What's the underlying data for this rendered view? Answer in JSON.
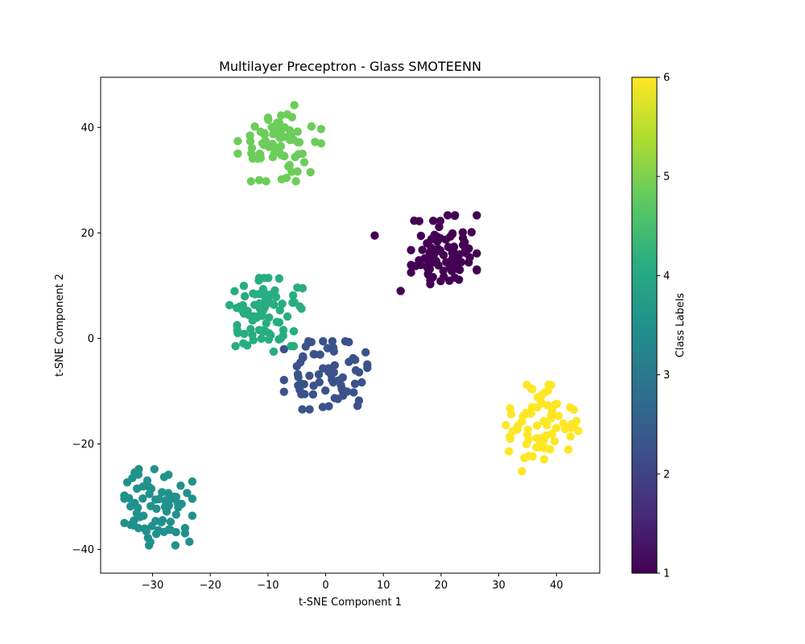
{
  "chart_data": {
    "type": "scatter",
    "title": "Multilayer Preceptron - Glass SMOTEENN",
    "xlabel": "t-SNE Component 1",
    "ylabel": "t-SNE Component 2",
    "xlim": [
      -39,
      47.5
    ],
    "ylim": [
      -44.5,
      49.5
    ],
    "xticks": [
      -30,
      -20,
      -10,
      0,
      10,
      20,
      30,
      40
    ],
    "yticks": [
      -40,
      -20,
      0,
      20,
      40
    ],
    "grid": false,
    "colormap": "viridis",
    "colorbar": {
      "label": "Class Labels",
      "range": [
        1,
        6
      ],
      "ticks": [
        1,
        2,
        3,
        4,
        5,
        6
      ],
      "colors": [
        "#440154",
        "#472c7a",
        "#3b528b",
        "#2c728e",
        "#21918c",
        "#28ae80",
        "#5ec962",
        "#addc30",
        "#fde725"
      ]
    },
    "clusters": [
      {
        "label": 1,
        "color": "#440154",
        "cx": 20.5,
        "cy": 16.5,
        "sx": 3.0,
        "sy": 3.6,
        "n": 90,
        "seed": 11
      },
      {
        "label": 2,
        "color": "#3b528b",
        "cx": 0,
        "cy": -7,
        "sx": 3.8,
        "sy": 3.4,
        "n": 70,
        "seed": 23
      },
      {
        "label": 3,
        "color": "#21918c",
        "cx": -29,
        "cy": -32,
        "sx": 3.1,
        "sy": 3.8,
        "n": 75,
        "seed": 37
      },
      {
        "label": 4,
        "color": "#27ad81",
        "cx": -10,
        "cy": 5,
        "sx": 3.5,
        "sy": 3.4,
        "n": 85,
        "seed": 41
      },
      {
        "label": 5,
        "color": "#6ccd5a",
        "cx": -8,
        "cy": 37,
        "sx": 3.8,
        "sy": 3.8,
        "n": 75,
        "seed": 53
      },
      {
        "label": 6,
        "color": "#fde725",
        "cx": 37.5,
        "cy": -17,
        "sx": 3.3,
        "sy": 4.3,
        "n": 70,
        "seed": 67
      }
    ],
    "outliers": [
      {
        "x": 8.5,
        "y": 19.5,
        "label": 1
      },
      {
        "x": 13,
        "y": 9,
        "label": 1
      },
      {
        "x": 32,
        "y": -19,
        "label": 6
      },
      {
        "x": -9,
        "y": -2.5,
        "label": 4
      },
      {
        "x": -11.5,
        "y": 30,
        "label": 5
      }
    ]
  }
}
